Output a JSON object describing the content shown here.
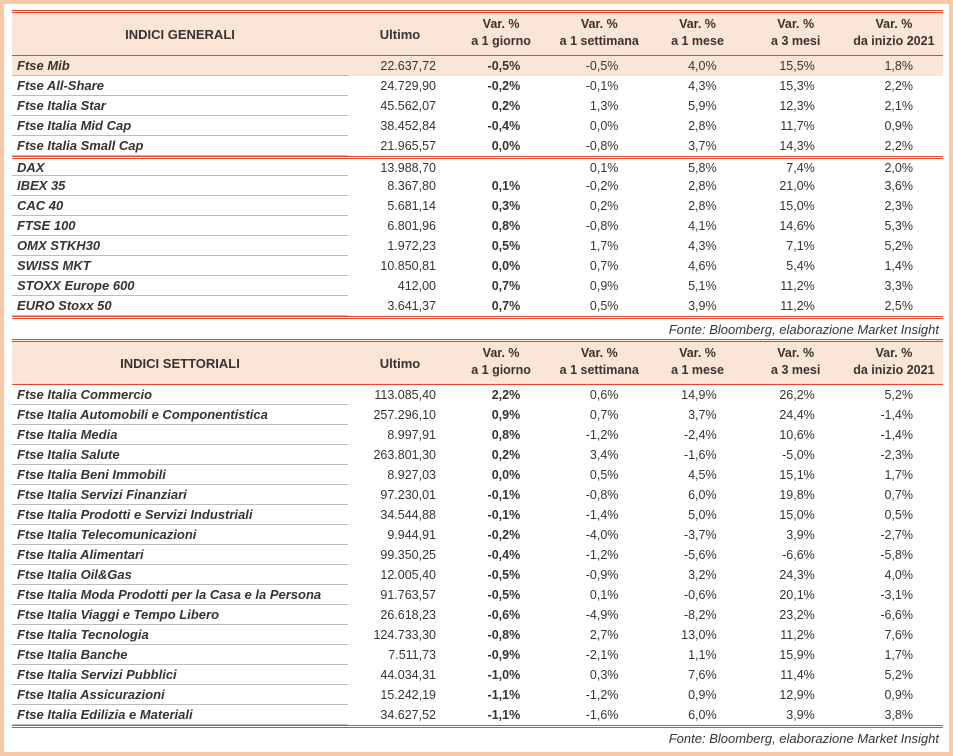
{
  "colors": {
    "accent_red": "#E3492F",
    "header_background": "#FBE5D6",
    "highlight_background": "#FBE5D6",
    "outer_frame": "#F8C9A8",
    "text": "#383330",
    "row_divider_gray": "#BFBDBA"
  },
  "columns": {
    "ultimo": "Ultimo",
    "var_label": "Var. %",
    "periods": [
      "a 1 giorno",
      "a 1 settimana",
      "a 1 mese",
      "a 3 mesi",
      "da inizio 2021"
    ]
  },
  "tables": [
    {
      "title": "INDICI GENERALI",
      "source": "Fonte: Bloomberg, elaborazione Market Insight",
      "rows": [
        {
          "name": "Ftse Mib",
          "ultimo": "22.637,72",
          "d1": "-0,5%",
          "w1": "-0,5%",
          "m1": "4,0%",
          "m3": "15,5%",
          "ytd": "1,8%",
          "highlight": true
        },
        {
          "name": "Ftse All-Share",
          "ultimo": "24.729,90",
          "d1": "-0,2%",
          "w1": "-0,1%",
          "m1": "4,3%",
          "m3": "15,3%",
          "ytd": "2,2%"
        },
        {
          "name": "Ftse Italia Star",
          "ultimo": "45.562,07",
          "d1": "0,2%",
          "w1": "1,3%",
          "m1": "5,9%",
          "m3": "12,3%",
          "ytd": "2,1%"
        },
        {
          "name": "Ftse Italia Mid Cap",
          "ultimo": "38.452,84",
          "d1": "-0,4%",
          "w1": "0,0%",
          "m1": "2,8%",
          "m3": "11,7%",
          "ytd": "0,9%"
        },
        {
          "name": "Ftse Italia Small Cap",
          "ultimo": "21.965,57",
          "d1": "0,0%",
          "w1": "-0,8%",
          "m1": "3,7%",
          "m3": "14,3%",
          "ytd": "2,2%"
        },
        {
          "name": "DAX",
          "ultimo": "13.988,70",
          "d1": "",
          "w1": "0,1%",
          "m1": "5,8%",
          "m3": "7,4%",
          "ytd": "2,0%",
          "separator": true
        },
        {
          "name": "IBEX 35",
          "ultimo": "8.367,80",
          "d1": "0,1%",
          "w1": "-0,2%",
          "m1": "2,8%",
          "m3": "21,0%",
          "ytd": "3,6%"
        },
        {
          "name": "CAC 40",
          "ultimo": "5.681,14",
          "d1": "0,3%",
          "w1": "0,2%",
          "m1": "2,8%",
          "m3": "15,0%",
          "ytd": "2,3%"
        },
        {
          "name": "FTSE 100",
          "ultimo": "6.801,96",
          "d1": "0,8%",
          "w1": "-0,8%",
          "m1": "4,1%",
          "m3": "14,6%",
          "ytd": "5,3%"
        },
        {
          "name": "OMX STKH30",
          "ultimo": "1.972,23",
          "d1": "0,5%",
          "w1": "1,7%",
          "m1": "4,3%",
          "m3": "7,1%",
          "ytd": "5,2%"
        },
        {
          "name": "SWISS MKT",
          "ultimo": "10.850,81",
          "d1": "0,0%",
          "w1": "0,7%",
          "m1": "4,6%",
          "m3": "5,4%",
          "ytd": "1,4%"
        },
        {
          "name": "STOXX Europe 600",
          "ultimo": "412,00",
          "d1": "0,7%",
          "w1": "0,9%",
          "m1": "5,1%",
          "m3": "11,2%",
          "ytd": "3,3%"
        },
        {
          "name": "EURO Stoxx 50",
          "ultimo": "3.641,37",
          "d1": "0,7%",
          "w1": "0,5%",
          "m1": "3,9%",
          "m3": "11,2%",
          "ytd": "2,5%"
        }
      ]
    },
    {
      "title": "INDICI SETTORIALI",
      "source": "Fonte: Bloomberg, elaborazione Market Insight",
      "rows": [
        {
          "name": "Ftse Italia Commercio",
          "ultimo": "113.085,40",
          "d1": "2,2%",
          "w1": "0,6%",
          "m1": "14,9%",
          "m3": "26,2%",
          "ytd": "5,2%"
        },
        {
          "name": "Ftse Italia Automobili e Componentistica",
          "ultimo": "257.296,10",
          "d1": "0,9%",
          "w1": "0,7%",
          "m1": "3,7%",
          "m3": "24,4%",
          "ytd": "-1,4%"
        },
        {
          "name": "Ftse Italia Media",
          "ultimo": "8.997,91",
          "d1": "0,8%",
          "w1": "-1,2%",
          "m1": "-2,4%",
          "m3": "10,6%",
          "ytd": "-1,4%"
        },
        {
          "name": "Ftse Italia Salute",
          "ultimo": "263.801,30",
          "d1": "0,2%",
          "w1": "3,4%",
          "m1": "-1,6%",
          "m3": "-5,0%",
          "ytd": "-2,3%"
        },
        {
          "name": "Ftse Italia Beni Immobili",
          "ultimo": "8.927,03",
          "d1": "0,0%",
          "w1": "0,5%",
          "m1": "4,5%",
          "m3": "15,1%",
          "ytd": "1,7%"
        },
        {
          "name": "Ftse Italia Servizi Finanziari",
          "ultimo": "97.230,01",
          "d1": "-0,1%",
          "w1": "-0,8%",
          "m1": "6,0%",
          "m3": "19,8%",
          "ytd": "0,7%"
        },
        {
          "name": "Ftse Italia Prodotti e Servizi Industriali",
          "ultimo": "34.544,88",
          "d1": "-0,1%",
          "w1": "-1,4%",
          "m1": "5,0%",
          "m3": "15,0%",
          "ytd": "0,5%"
        },
        {
          "name": "Ftse Italia Telecomunicazioni",
          "ultimo": "9.944,91",
          "d1": "-0,2%",
          "w1": "-4,0%",
          "m1": "-3,7%",
          "m3": "3,9%",
          "ytd": "-2,7%"
        },
        {
          "name": "Ftse Italia Alimentari",
          "ultimo": "99.350,25",
          "d1": "-0,4%",
          "w1": "-1,2%",
          "m1": "-5,6%",
          "m3": "-6,6%",
          "ytd": "-5,8%"
        },
        {
          "name": "Ftse Italia Oil&Gas",
          "ultimo": "12.005,40",
          "d1": "-0,5%",
          "w1": "-0,9%",
          "m1": "3,2%",
          "m3": "24,3%",
          "ytd": "4,0%"
        },
        {
          "name": "Ftse Italia Moda Prodotti per la Casa e la Persona",
          "ultimo": "91.763,57",
          "d1": "-0,5%",
          "w1": "0,1%",
          "m1": "-0,6%",
          "m3": "20,1%",
          "ytd": "-3,1%"
        },
        {
          "name": "Ftse Italia Viaggi e Tempo Libero",
          "ultimo": "26.618,23",
          "d1": "-0,6%",
          "w1": "-4,9%",
          "m1": "-8,2%",
          "m3": "23,2%",
          "ytd": "-6,6%"
        },
        {
          "name": "Ftse Italia Tecnologia",
          "ultimo": "124.733,30",
          "d1": "-0,8%",
          "w1": "2,7%",
          "m1": "13,0%",
          "m3": "11,2%",
          "ytd": "7,6%"
        },
        {
          "name": "Ftse Italia Banche",
          "ultimo": "7.511,73",
          "d1": "-0,9%",
          "w1": "-2,1%",
          "m1": "1,1%",
          "m3": "15,9%",
          "ytd": "1,7%"
        },
        {
          "name": "Ftse Italia Servizi Pubblici",
          "ultimo": "44.034,31",
          "d1": "-1,0%",
          "w1": "0,3%",
          "m1": "7,6%",
          "m3": "11,4%",
          "ytd": "5,2%"
        },
        {
          "name": "Ftse Italia Assicurazioni",
          "ultimo": "15.242,19",
          "d1": "-1,1%",
          "w1": "-1,2%",
          "m1": "0,9%",
          "m3": "12,9%",
          "ytd": "0,9%"
        },
        {
          "name": "Ftse Italia Edilizia e Materiali",
          "ultimo": "34.627,52",
          "d1": "-1,1%",
          "w1": "-1,6%",
          "m1": "6,0%",
          "m3": "3,9%",
          "ytd": "3,8%"
        }
      ]
    }
  ]
}
